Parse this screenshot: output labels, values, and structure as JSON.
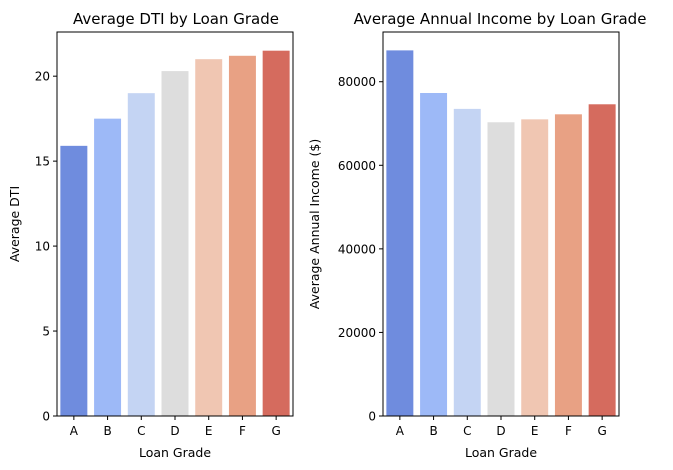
{
  "chart_data": [
    {
      "type": "bar",
      "title": "Average DTI by Loan Grade",
      "xlabel": "Loan Grade",
      "ylabel": "Average DTI",
      "categories": [
        "A",
        "B",
        "C",
        "D",
        "E",
        "F",
        "G"
      ],
      "values": [
        15.9,
        17.5,
        19.0,
        20.3,
        21.0,
        21.2,
        21.5
      ],
      "ylim": [
        0,
        22.6
      ],
      "yticks": [
        0,
        5,
        10,
        15,
        20
      ],
      "ytick_labels": [
        "0",
        "5",
        "10",
        "15",
        "20"
      ],
      "grid": false,
      "colors": [
        "#6F8CDE",
        "#9DB9F7",
        "#C4D4F3",
        "#DDDDDD",
        "#F0C6B2",
        "#E8A184",
        "#D56B5E"
      ]
    },
    {
      "type": "bar",
      "title": "Average Annual Income by Loan Grade",
      "xlabel": "Loan Grade",
      "ylabel": "Average Annual Income ($)",
      "categories": [
        "A",
        "B",
        "C",
        "D",
        "E",
        "F",
        "G"
      ],
      "values": [
        87500,
        77300,
        73500,
        70300,
        71000,
        72200,
        74600
      ],
      "ylim": [
        0,
        91900
      ],
      "yticks": [
        0,
        20000,
        40000,
        60000,
        80000
      ],
      "ytick_labels": [
        "0",
        "20000",
        "40000",
        "60000",
        "80000"
      ],
      "grid": false,
      "colors": [
        "#6F8CDE",
        "#9DB9F7",
        "#C4D4F3",
        "#DDDDDD",
        "#F0C6B2",
        "#E8A184",
        "#D56B5E"
      ]
    }
  ]
}
